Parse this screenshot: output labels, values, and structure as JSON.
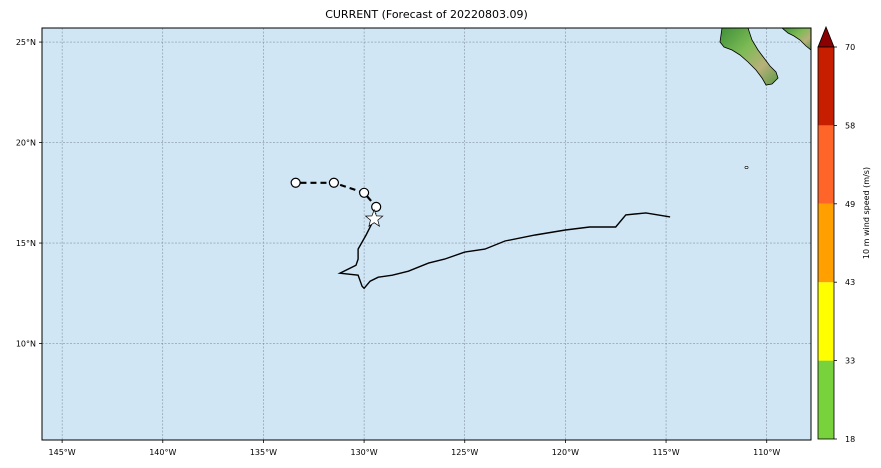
{
  "title": "CURRENT (Forecast of 20220803.09)",
  "map": {
    "ocean_color": "#d0e6f5",
    "grid_color": "#708090",
    "lon_ticks": [
      {
        "label": "145°W",
        "lon": -145
      },
      {
        "label": "140°W",
        "lon": -140
      },
      {
        "label": "135°W",
        "lon": -135
      },
      {
        "label": "130°W",
        "lon": -130
      },
      {
        "label": "125°W",
        "lon": -125
      },
      {
        "label": "120°W",
        "lon": -120
      },
      {
        "label": "115°W",
        "lon": -115
      },
      {
        "label": "110°W",
        "lon": -110
      }
    ],
    "lat_ticks": [
      {
        "label": "25°N",
        "lat": 25
      },
      {
        "label": "20°N",
        "lat": 20
      },
      {
        "label": "15°N",
        "lat": 15
      },
      {
        "label": "10°N",
        "lat": 10
      }
    ],
    "extent": {
      "lon_min": -146,
      "lon_max": -107.8,
      "lat_min": 5.2,
      "lat_max": 25.7
    }
  },
  "track": {
    "forecast_points": [
      {
        "lon": -133.4,
        "lat": 18.0
      },
      {
        "lon": -131.5,
        "lat": 18.0
      },
      {
        "lon": -130.0,
        "lat": 17.5
      },
      {
        "lon": -129.4,
        "lat": 16.8
      }
    ],
    "current_position": {
      "lon": -129.5,
      "lat": 16.2
    },
    "past_track": [
      [
        -114.8,
        16.3
      ],
      [
        -116.0,
        16.5
      ],
      [
        -117.0,
        16.4
      ],
      [
        -117.5,
        15.8
      ],
      [
        -118.8,
        15.8
      ],
      [
        -120.0,
        15.65
      ],
      [
        -121.5,
        15.4
      ],
      [
        -123.0,
        15.1
      ],
      [
        -124.0,
        14.7
      ],
      [
        -125.0,
        14.55
      ],
      [
        -126.0,
        14.2
      ],
      [
        -126.8,
        14.0
      ],
      [
        -127.8,
        13.6
      ],
      [
        -128.6,
        13.4
      ],
      [
        -129.3,
        13.3
      ],
      [
        -129.7,
        13.1
      ],
      [
        -130.0,
        12.75
      ],
      [
        -130.1,
        12.85
      ],
      [
        -130.3,
        13.4
      ],
      [
        -131.2,
        13.5
      ],
      [
        -130.4,
        13.9
      ],
      [
        -130.3,
        14.2
      ],
      [
        -130.3,
        14.7
      ],
      [
        -129.9,
        15.4
      ],
      [
        -129.5,
        16.2
      ]
    ]
  },
  "colorbar": {
    "label": "10 m wind speed (m/s)",
    "ticks": [
      "18",
      "33",
      "43",
      "49",
      "58",
      "70"
    ],
    "colors": [
      "#78d23c",
      "#ffff00",
      "#ffa000",
      "#ff6428",
      "#c81e00"
    ],
    "extend_color": "#8b0000"
  }
}
